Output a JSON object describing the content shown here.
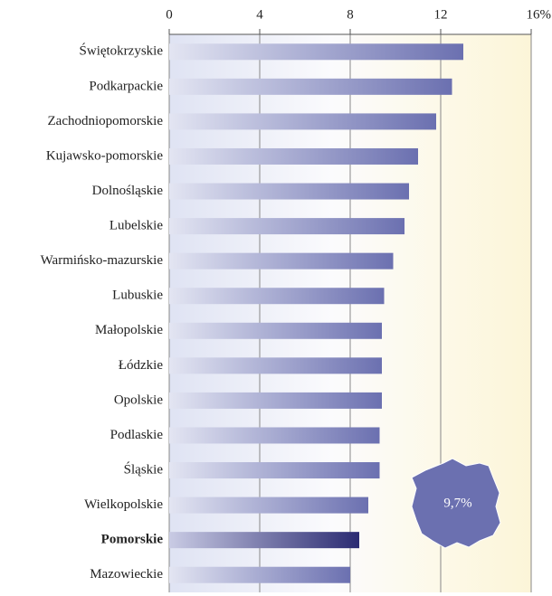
{
  "chart_data": {
    "type": "bar",
    "orientation": "horizontal",
    "categories": [
      "Świętokrzyskie",
      "Podkarpackie",
      "Zachodniopomorskie",
      "Kujawsko-pomorskie",
      "Dolnośląskie",
      "Lubelskie",
      "Warmińsko-mazurskie",
      "Lubuskie",
      "Małopolskie",
      "Łódzkie",
      "Opolskie",
      "Podlaskie",
      "Śląskie",
      "Wielkopolskie",
      "Pomorskie",
      "Mazowieckie"
    ],
    "values": [
      13.0,
      12.5,
      11.8,
      11.0,
      10.6,
      10.4,
      9.9,
      9.5,
      9.4,
      9.4,
      9.4,
      9.3,
      9.3,
      8.8,
      8.4,
      8.0
    ],
    "color": "#6b70b0",
    "highlight": "Pomorskie",
    "highlight_color": "#2b2b72",
    "xlim": [
      0,
      16
    ],
    "xticks": [
      0,
      4,
      8,
      12,
      {
        "value": 16,
        "label": "16%"
      }
    ],
    "grid": true,
    "annotation": "9,7%"
  }
}
